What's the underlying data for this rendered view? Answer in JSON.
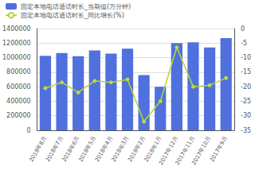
{
  "chart_data": {
    "type": "bar",
    "categories": [
      "2018年8月",
      "2018年7月",
      "2018年6月",
      "2018年5月",
      "2018年4月",
      "2018年3月",
      "2018年2月",
      "2018年1月",
      "2017年12月",
      "2017年11月",
      "2017年10月",
      "2017年9月"
    ],
    "series": [
      {
        "name": "固定本地电话通话时长_当期值(万分钟)",
        "type": "bar",
        "values": [
          1025152,
          1065000,
          1020000,
          1100000,
          1055000,
          1125000,
          760000,
          600000,
          1200000,
          1210000,
          1140000,
          1270000
        ]
      },
      {
        "name": "固定本地电话通话时长_同比增长(%)",
        "type": "line",
        "axis": "y2",
        "values": [
          -20.5,
          -18.5,
          -22.0,
          -18.0,
          -18.5,
          -17.5,
          -32.0,
          -25.0,
          -6.5,
          -20.0,
          -19.5,
          -17.0
        ]
      }
    ],
    "ylim": [
      0,
      1400000
    ],
    "yticks": [
      0,
      200000,
      400000,
      600000,
      800000,
      1000000,
      1200000,
      1400000
    ],
    "y2lim": [
      -35,
      0
    ],
    "y2ticks": [
      -35,
      -30,
      -25,
      -20,
      -15,
      -10,
      -5,
      0
    ],
    "grid": true,
    "legend": "upper left"
  }
}
